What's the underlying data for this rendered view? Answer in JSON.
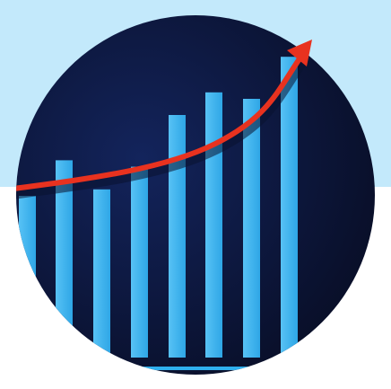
{
  "scene": {
    "subject": "growth-chart-illustration",
    "band_color": "#c3e9fb",
    "page_color": "#ffffff",
    "circle_color_dark": "#080d24",
    "circle_color_mid": "#13245c",
    "bar_color": "#2ea6e6",
    "bar_highlight": "#57c2f5",
    "arrow_color": "#e8321f",
    "arrow_shadow": "#0a1230",
    "baseline_color": "#2fb0ef"
  },
  "chart_data": {
    "type": "bar",
    "values": [
      50,
      61,
      52,
      59,
      75,
      82,
      80,
      93
    ],
    "trend": {
      "direction": "up",
      "icon": "trend-arrow"
    },
    "ylim": [
      0,
      100
    ],
    "grid": false
  }
}
